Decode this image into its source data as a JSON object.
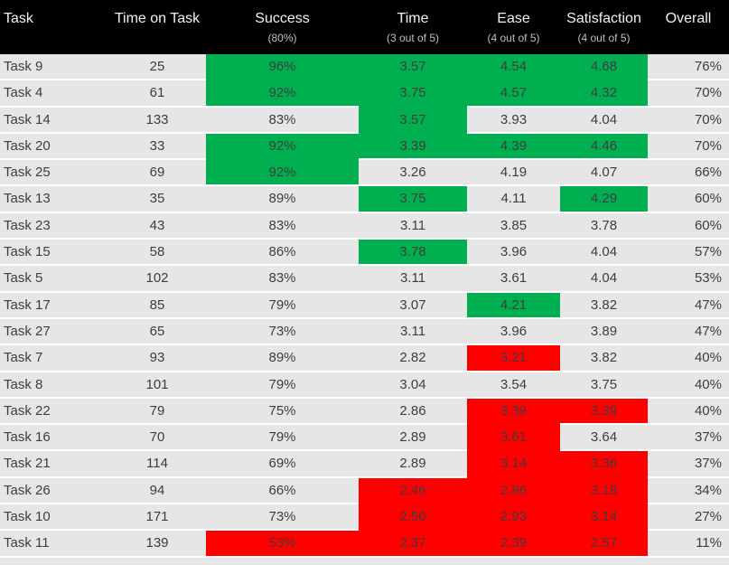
{
  "colors": {
    "header_bg": "#000000",
    "header_text": "#F2F2F2",
    "subheader_text": "#BFBFBF",
    "row_bg": "#E6E6E6",
    "grid": "#FFFFFF",
    "cell_text": "#3D3D3D",
    "green": "#00B050",
    "red": "#FF0000"
  },
  "chart_data": {
    "type": "table",
    "legend_position": "none",
    "grid": "horizontal-white-separators",
    "highlight_colors": {
      "green": "#00B050",
      "red": "#FF0000"
    },
    "columns": [
      {
        "key": "task",
        "label": "Task",
        "sublabel": "",
        "header_align": "left",
        "cell_align": "left"
      },
      {
        "key": "time_on_task",
        "label": "Time on Task",
        "sublabel": "",
        "header_align": "center",
        "cell_align": "center"
      },
      {
        "key": "success",
        "label": "Success",
        "sublabel": "(80%)",
        "header_align": "center",
        "cell_align": "center"
      },
      {
        "key": "time",
        "label": "Time",
        "sublabel": "(3 out of 5)",
        "header_align": "center",
        "cell_align": "center"
      },
      {
        "key": "ease",
        "label": "Ease",
        "sublabel": "(4 out of 5)",
        "header_align": "center",
        "cell_align": "center"
      },
      {
        "key": "satisfaction",
        "label": "Satisfaction",
        "sublabel": "(4 out of 5)",
        "header_align": "center",
        "cell_align": "center"
      },
      {
        "key": "overall",
        "label": "Overall",
        "sublabel": "",
        "header_align": "center",
        "cell_align": "right"
      }
    ],
    "rows": [
      {
        "task": "Task 9",
        "time_on_task": "25",
        "success": "96%",
        "time": "3.57",
        "ease": "4.54",
        "satisfaction": "4.68",
        "overall": "76%",
        "hl": {
          "success": "green",
          "time": "green",
          "ease": "green",
          "satisfaction": "green"
        }
      },
      {
        "task": "Task 4",
        "time_on_task": "61",
        "success": "92%",
        "time": "3.75",
        "ease": "4.57",
        "satisfaction": "4.32",
        "overall": "70%",
        "hl": {
          "success": "green",
          "time": "green",
          "ease": "green",
          "satisfaction": "green"
        }
      },
      {
        "task": "Task 14",
        "time_on_task": "133",
        "success": "83%",
        "time": "3.57",
        "ease": "3.93",
        "satisfaction": "4.04",
        "overall": "70%",
        "hl": {
          "time": "green"
        }
      },
      {
        "task": "Task 20",
        "time_on_task": "33",
        "success": "92%",
        "time": "3.39",
        "ease": "4.39",
        "satisfaction": "4.46",
        "overall": "70%",
        "hl": {
          "success": "green",
          "time": "green",
          "ease": "green",
          "satisfaction": "green"
        }
      },
      {
        "task": "Task 25",
        "time_on_task": "69",
        "success": "92%",
        "time": "3.26",
        "ease": "4.19",
        "satisfaction": "4.07",
        "overall": "66%",
        "hl": {
          "success": "green"
        }
      },
      {
        "task": "Task 13",
        "time_on_task": "35",
        "success": "89%",
        "time": "3.75",
        "ease": "4.11",
        "satisfaction": "4.29",
        "overall": "60%",
        "hl": {
          "time": "green",
          "satisfaction": "green"
        }
      },
      {
        "task": "Task 23",
        "time_on_task": "43",
        "success": "83%",
        "time": "3.11",
        "ease": "3.85",
        "satisfaction": "3.78",
        "overall": "60%",
        "hl": {}
      },
      {
        "task": "Task 15",
        "time_on_task": "58",
        "success": "86%",
        "time": "3.78",
        "ease": "3.96",
        "satisfaction": "4.04",
        "overall": "57%",
        "hl": {
          "time": "green"
        }
      },
      {
        "task": "Task 5",
        "time_on_task": "102",
        "success": "83%",
        "time": "3.11",
        "ease": "3.61",
        "satisfaction": "4.04",
        "overall": "53%",
        "hl": {}
      },
      {
        "task": "Task 17",
        "time_on_task": "85",
        "success": "79%",
        "time": "3.07",
        "ease": "4.21",
        "satisfaction": "3.82",
        "overall": "47%",
        "hl": {
          "ease": "green"
        }
      },
      {
        "task": "Task 27",
        "time_on_task": "65",
        "success": "73%",
        "time": "3.11",
        "ease": "3.96",
        "satisfaction": "3.89",
        "overall": "47%",
        "hl": {}
      },
      {
        "task": "Task 7",
        "time_on_task": "93",
        "success": "89%",
        "time": "2.82",
        "ease": "3.21",
        "satisfaction": "3.82",
        "overall": "40%",
        "hl": {
          "ease": "red"
        }
      },
      {
        "task": "Task 8",
        "time_on_task": "101",
        "success": "79%",
        "time": "3.04",
        "ease": "3.54",
        "satisfaction": "3.75",
        "overall": "40%",
        "hl": {}
      },
      {
        "task": "Task 22",
        "time_on_task": "79",
        "success": "75%",
        "time": "2.86",
        "ease": "3.39",
        "satisfaction": "3.39",
        "overall": "40%",
        "hl": {
          "ease": "red",
          "satisfaction": "red"
        }
      },
      {
        "task": "Task 16",
        "time_on_task": "70",
        "success": "79%",
        "time": "2.89",
        "ease": "3.61",
        "satisfaction": "3.64",
        "overall": "37%",
        "hl": {
          "ease": "red"
        }
      },
      {
        "task": "Task 21",
        "time_on_task": "114",
        "success": "69%",
        "time": "2.89",
        "ease": "3.14",
        "satisfaction": "3.36",
        "overall": "37%",
        "hl": {
          "ease": "red",
          "satisfaction": "red"
        }
      },
      {
        "task": "Task 26",
        "time_on_task": "94",
        "success": "66%",
        "time": "2.46",
        "ease": "2.86",
        "satisfaction": "3.18",
        "overall": "34%",
        "hl": {
          "time": "red",
          "ease": "red",
          "satisfaction": "red"
        }
      },
      {
        "task": "Task 10",
        "time_on_task": "171",
        "success": "73%",
        "time": "2.50",
        "ease": "2.93",
        "satisfaction": "3.14",
        "overall": "27%",
        "hl": {
          "time": "red",
          "ease": "red",
          "satisfaction": "red"
        }
      },
      {
        "task": "Task 11",
        "time_on_task": "139",
        "success": "53%",
        "time": "2.37",
        "ease": "2.39",
        "satisfaction": "2.57",
        "overall": "11%",
        "hl": {
          "success": "red",
          "time": "red",
          "ease": "red",
          "satisfaction": "red"
        }
      }
    ]
  }
}
